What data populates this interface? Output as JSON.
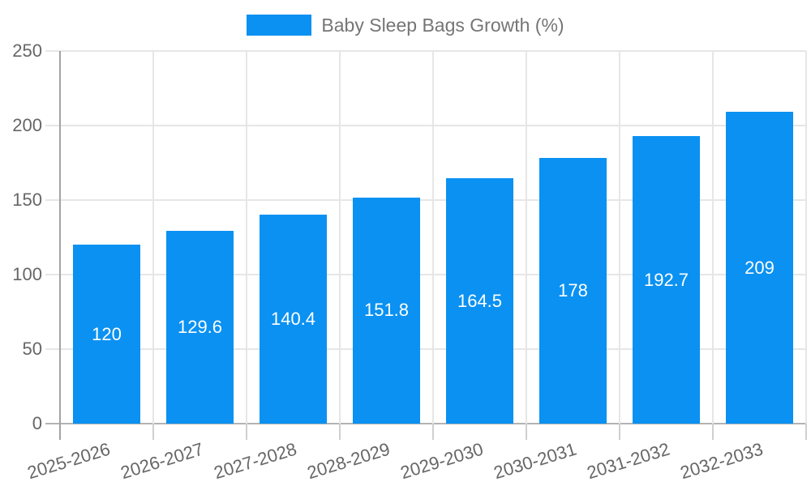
{
  "chart_data": {
    "type": "bar",
    "title": "",
    "legend_label": "Baby Sleep Bags Growth (%)",
    "legend_position": "top",
    "categories": [
      "2025-2026",
      "2026-2027",
      "2027-2028",
      "2028-2029",
      "2029-2030",
      "2030-2031",
      "2031-2032",
      "2032-2033"
    ],
    "values": [
      120,
      129.6,
      140.4,
      151.8,
      164.5,
      178,
      192.7,
      209
    ],
    "value_labels": [
      "120",
      "129.6",
      "140.4",
      "151.8",
      "164.5",
      "178",
      "192.7",
      "209"
    ],
    "xlabel": "",
    "ylabel": "",
    "ylim": [
      0,
      250
    ],
    "yticks": [
      0,
      50,
      100,
      150,
      200,
      250
    ],
    "grid": true,
    "bar_color": "#0a91f2"
  },
  "colors": {
    "background": "#ffffff",
    "gridline": "#e6e6e6",
    "baseline": "#b3b3b3",
    "axis_line": "#a3a3a3",
    "x_tick": "#cfcfcf",
    "axis_label_text": "#666666",
    "legend_text": "#757575",
    "bar_value_text": "#ffffff"
  }
}
